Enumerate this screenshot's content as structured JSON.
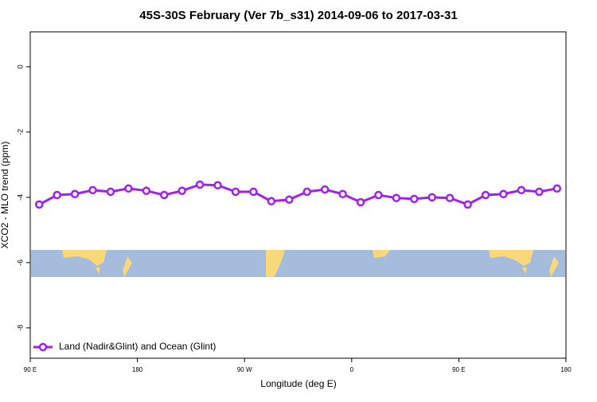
{
  "chart_data": {
    "type": "line",
    "title": "45S-30S February (Ver 7b_s31)   2014-09-06 to 2017-03-31",
    "x_label": "Longitude (deg E)",
    "y_label": "XCO2 - MLO trend (ppm)",
    "x": [
      97.5,
      112.5,
      127.5,
      142.5,
      157.5,
      172.5,
      187.5,
      202.5,
      217.5,
      232.5,
      247.5,
      262.5,
      277.5,
      292.5,
      307.5,
      322.5,
      337.5,
      352.5,
      367.5,
      382.5,
      397.5,
      412.5,
      427.5,
      442.5,
      457.5,
      472.5,
      487.5,
      502.5,
      517.5,
      532.5
    ],
    "series": [
      {
        "name": "Land (Nadir&Glint) and Ocean (Glint)",
        "color": "#a020f0",
        "values": [
          -4.22,
          -3.93,
          -3.9,
          -3.78,
          -3.83,
          -3.73,
          -3.8,
          -3.93,
          -3.8,
          -3.61,
          -3.63,
          -3.83,
          -3.83,
          -4.12,
          -4.07,
          -3.83,
          -3.76,
          -3.9,
          -4.15,
          -3.93,
          -4.02,
          -4.05,
          -4.0,
          -4.02,
          -4.22,
          -3.93,
          -3.9,
          -3.78,
          -3.83,
          -3.73
        ]
      }
    ],
    "xlim": [
      90,
      540
    ],
    "xticks": [
      {
        "value": 90,
        "label": "90 E"
      },
      180,
      {
        "value": 270,
        "label": "90 W"
      },
      {
        "value": 360,
        "label": "0"
      },
      {
        "value": 450,
        "label": "90 E"
      },
      {
        "value": 540,
        "label": "180"
      }
    ],
    "ylim": [
      -8.93,
      1.07
    ],
    "yticks": [
      0,
      -2,
      -4,
      -6,
      -8
    ],
    "legend": "bottomleft"
  }
}
